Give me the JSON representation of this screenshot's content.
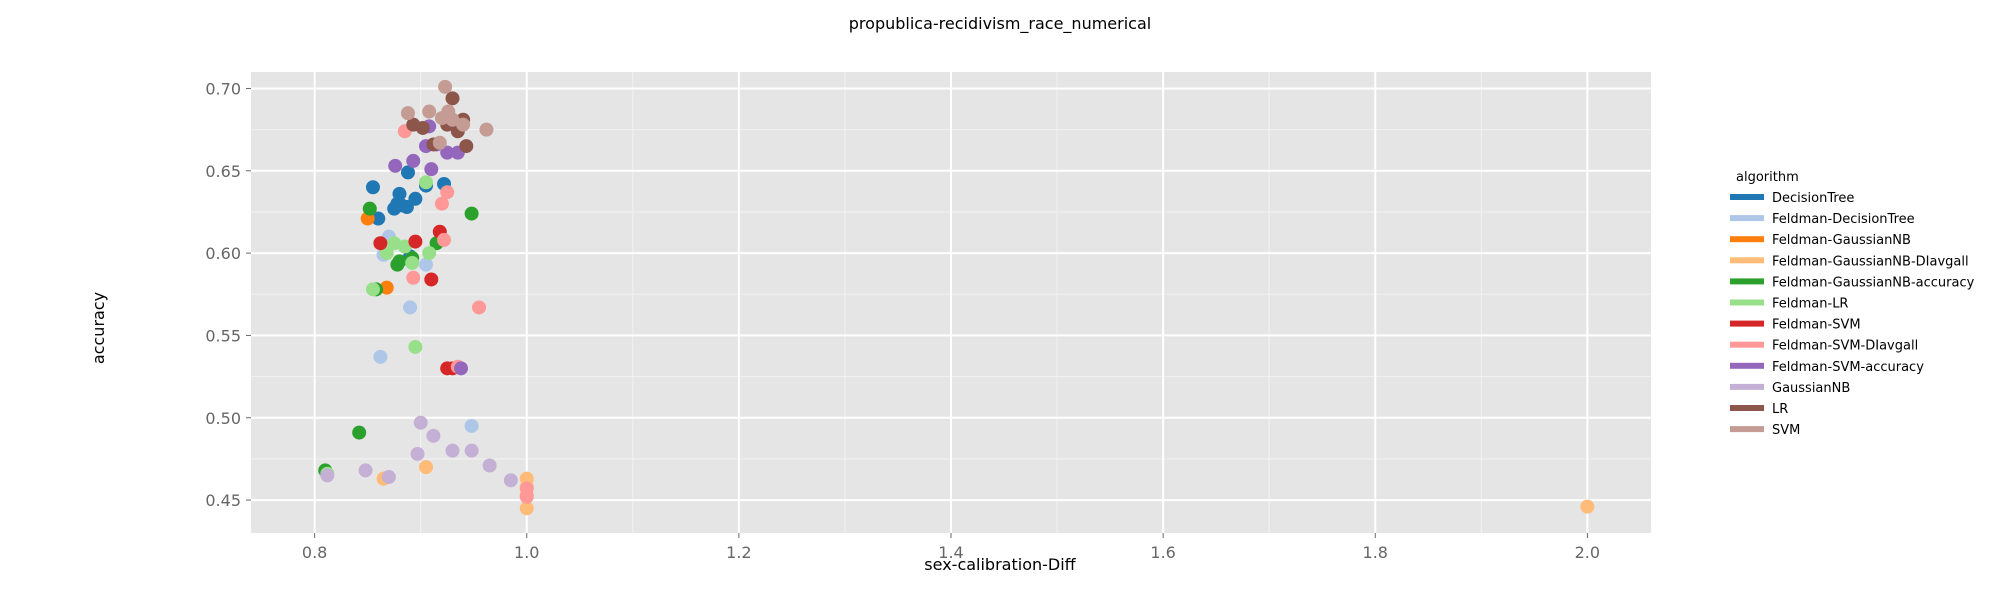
{
  "chart_data": {
    "type": "scatter",
    "title": "propublica-recidivism_race_numerical",
    "xlabel": "sex-calibration-Diff",
    "ylabel": "accuracy",
    "xlim": [
      0.74,
      2.06
    ],
    "ylim": [
      0.43,
      0.71
    ],
    "xticks": [
      0.8,
      1.0,
      1.2,
      1.4,
      1.6,
      1.8,
      2.0
    ],
    "xtick_labels": [
      "0.8",
      "1.0",
      "1.2",
      "1.4",
      "1.6",
      "1.8",
      "2.0"
    ],
    "yticks": [
      0.45,
      0.5,
      0.55,
      0.6,
      0.65,
      0.7
    ],
    "ytick_labels": [
      "0.45",
      "0.50",
      "0.55",
      "0.60",
      "0.65",
      "0.70"
    ],
    "grid": true,
    "legend": {
      "title": "algorithm",
      "position": "right"
    },
    "series": [
      {
        "name": "DecisionTree",
        "color": "#1f77b4",
        "points": [
          [
            0.855,
            0.64
          ],
          [
            0.86,
            0.621
          ],
          [
            0.875,
            0.627
          ],
          [
            0.878,
            0.63
          ],
          [
            0.88,
            0.636
          ],
          [
            0.882,
            0.629
          ],
          [
            0.887,
            0.628
          ],
          [
            0.888,
            0.649
          ],
          [
            0.895,
            0.633
          ],
          [
            0.905,
            0.641
          ],
          [
            0.922,
            0.642
          ],
          [
            0.89,
            0.598
          ]
        ]
      },
      {
        "name": "Feldman-DecisionTree",
        "color": "#aec7e8",
        "points": [
          [
            0.862,
            0.537
          ],
          [
            0.865,
            0.599
          ],
          [
            0.87,
            0.61
          ],
          [
            0.89,
            0.567
          ],
          [
            0.905,
            0.593
          ],
          [
            0.948,
            0.495
          ]
        ]
      },
      {
        "name": "Feldman-GaussianNB",
        "color": "#ff7f0e",
        "points": [
          [
            0.85,
            0.621
          ],
          [
            0.868,
            0.579
          ]
        ]
      },
      {
        "name": "Feldman-GaussianNB-DIavgall",
        "color": "#ffbb78",
        "points": [
          [
            0.865,
            0.463
          ],
          [
            0.905,
            0.47
          ],
          [
            1.0,
            0.463
          ],
          [
            1.0,
            0.458
          ],
          [
            1.0,
            0.453
          ],
          [
            1.0,
            0.445
          ],
          [
            2.0,
            0.446
          ]
        ]
      },
      {
        "name": "Feldman-GaussianNB-accuracy",
        "color": "#2ca02c",
        "points": [
          [
            0.81,
            0.468
          ],
          [
            0.842,
            0.491
          ],
          [
            0.852,
            0.627
          ],
          [
            0.858,
            0.578
          ],
          [
            0.878,
            0.593
          ],
          [
            0.88,
            0.595
          ],
          [
            0.892,
            0.597
          ],
          [
            0.915,
            0.606
          ],
          [
            0.948,
            0.624
          ]
        ]
      },
      {
        "name": "Feldman-LR",
        "color": "#98df8a",
        "points": [
          [
            0.812,
            0.466
          ],
          [
            0.855,
            0.578
          ],
          [
            0.868,
            0.6
          ],
          [
            0.875,
            0.606
          ],
          [
            0.885,
            0.604
          ],
          [
            0.892,
            0.594
          ],
          [
            0.895,
            0.543
          ],
          [
            0.905,
            0.643
          ],
          [
            0.908,
            0.6
          ]
        ]
      },
      {
        "name": "Feldman-SVM",
        "color": "#d62728",
        "points": [
          [
            0.862,
            0.606
          ],
          [
            0.895,
            0.607
          ],
          [
            0.91,
            0.584
          ],
          [
            0.918,
            0.613
          ],
          [
            0.925,
            0.53
          ],
          [
            0.93,
            0.53
          ]
        ]
      },
      {
        "name": "Feldman-SVM-DIavgall",
        "color": "#ff9896",
        "points": [
          [
            0.885,
            0.674
          ],
          [
            0.893,
            0.585
          ],
          [
            0.92,
            0.63
          ],
          [
            0.922,
            0.608
          ],
          [
            0.925,
            0.637
          ],
          [
            0.935,
            0.531
          ],
          [
            0.955,
            0.567
          ],
          [
            1.0,
            0.457
          ],
          [
            1.0,
            0.452
          ]
        ]
      },
      {
        "name": "Feldman-SVM-accuracy",
        "color": "#9467bd",
        "points": [
          [
            0.876,
            0.653
          ],
          [
            0.893,
            0.656
          ],
          [
            0.905,
            0.665
          ],
          [
            0.908,
            0.677
          ],
          [
            0.91,
            0.651
          ],
          [
            0.915,
            0.666
          ],
          [
            0.925,
            0.661
          ],
          [
            0.935,
            0.661
          ],
          [
            0.938,
            0.53
          ]
        ]
      },
      {
        "name": "GaussianNB",
        "color": "#c5b0d5",
        "points": [
          [
            0.812,
            0.465
          ],
          [
            0.848,
            0.468
          ],
          [
            0.87,
            0.464
          ],
          [
            0.897,
            0.478
          ],
          [
            0.9,
            0.497
          ],
          [
            0.912,
            0.489
          ],
          [
            0.93,
            0.48
          ],
          [
            0.948,
            0.48
          ],
          [
            0.965,
            0.471
          ],
          [
            0.985,
            0.462
          ]
        ]
      },
      {
        "name": "LR",
        "color": "#8c564b",
        "points": [
          [
            0.893,
            0.678
          ],
          [
            0.902,
            0.676
          ],
          [
            0.912,
            0.666
          ],
          [
            0.925,
            0.678
          ],
          [
            0.93,
            0.694
          ],
          [
            0.935,
            0.674
          ],
          [
            0.94,
            0.681
          ],
          [
            0.943,
            0.665
          ]
        ]
      },
      {
        "name": "SVM",
        "color": "#c49c94",
        "points": [
          [
            0.888,
            0.685
          ],
          [
            0.908,
            0.686
          ],
          [
            0.918,
            0.667
          ],
          [
            0.92,
            0.682
          ],
          [
            0.923,
            0.701
          ],
          [
            0.926,
            0.686
          ],
          [
            0.93,
            0.681
          ],
          [
            0.94,
            0.678
          ],
          [
            0.962,
            0.675
          ]
        ]
      }
    ]
  }
}
